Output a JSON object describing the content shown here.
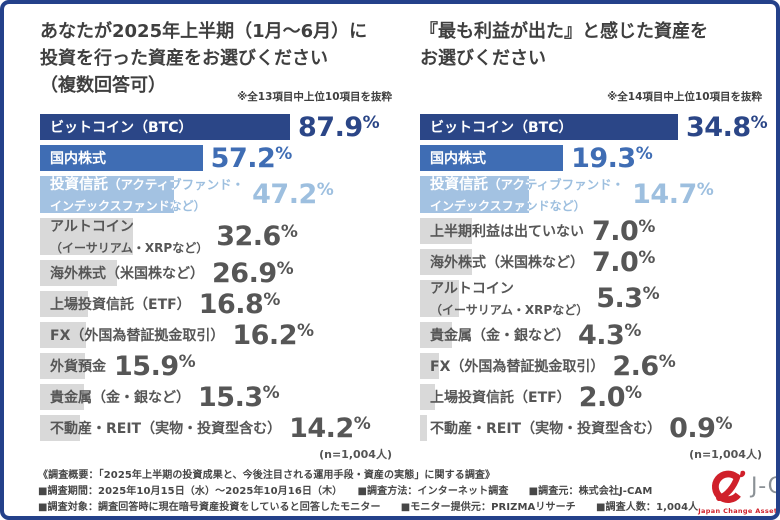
{
  "colors": {
    "frame": "#24418a",
    "navy": "#2b4687",
    "blue": "#3f6db4",
    "lightblue_bar": "#a3c2e2",
    "lightblue_text": "#9dbfdf",
    "gray_bar": "#d9d9d9",
    "text_gray": "#565656",
    "title_gray": "#3f3f3f",
    "logo_red": "#d0202a",
    "logo_gray": "#8b9196"
  },
  "chart_data": [
    {
      "type": "bar",
      "title": "あなたが2025年上半期（1月～6月）に投資を行った資産をお選びください（複数回答可）",
      "title_lines": [
        "あなたが2025年上半期（1月～6月）に",
        "投資を行った資産をお選びください",
        "（複数回答可）"
      ],
      "note": "※全13項目中上位10項目を抜粋",
      "n_label": "(n=1,004人)",
      "unit": "%",
      "scale_max": 87.9,
      "categories": [
        "ビットコイン（BTC）",
        "国内株式",
        "投資信託（アクティブファンド・インデックスファンドなど）",
        "アルトコイン（イーサリアム・XRPなど）",
        "海外株式（米国株など）",
        "上場投資信託（ETF）",
        "FX（外国為替証拠金取引）",
        "外貨預金",
        "貴金属（金・銀など）",
        "不動産・REIT（実物・投資型含む）"
      ],
      "values": [
        87.9,
        57.2,
        47.2,
        32.6,
        26.9,
        16.8,
        16.2,
        15.9,
        15.3,
        14.2
      ],
      "rows": [
        {
          "style": "navy",
          "value": "87.9",
          "pct": 87.9,
          "lines": [
            {
              "t": "ビットコイン（BTC）"
            }
          ]
        },
        {
          "style": "blue",
          "value": "57.2",
          "pct": 57.2,
          "lines": [
            {
              "t": "国内株式"
            }
          ]
        },
        {
          "style": "lightblue",
          "value": "47.2",
          "pct": 47.2,
          "lines": [
            {
              "s": "投資信託",
              "t": "（アクティブファンド・"
            },
            {
              "t": "インデックスファンドなど）",
              "sub": true
            }
          ]
        },
        {
          "style": "gray",
          "value": "32.6",
          "pct": 32.6,
          "lines": [
            {
              "t": "アルトコイン"
            },
            {
              "t": "（イーサリアム・XRPなど）",
              "sub": true
            }
          ]
        },
        {
          "style": "gray",
          "value": "26.9",
          "pct": 26.9,
          "lines": [
            {
              "t": "海外株式（米国株など）"
            }
          ]
        },
        {
          "style": "gray",
          "value": "16.8",
          "pct": 16.8,
          "lines": [
            {
              "t": "上場投資信託（ETF）"
            }
          ]
        },
        {
          "style": "gray",
          "value": "16.2",
          "pct": 16.2,
          "lines": [
            {
              "t": "FX（外国為替証拠金取引）"
            }
          ]
        },
        {
          "style": "gray",
          "value": "15.9",
          "pct": 15.9,
          "lines": [
            {
              "t": "外貨預金"
            }
          ]
        },
        {
          "style": "gray",
          "value": "15.3",
          "pct": 15.3,
          "lines": [
            {
              "t": "貴金属（金・銀など）"
            }
          ]
        },
        {
          "style": "gray",
          "value": "14.2",
          "pct": 14.2,
          "lines": [
            {
              "t": "不動産・REIT（実物・投資型含む）"
            }
          ]
        }
      ]
    },
    {
      "type": "bar",
      "title": "『最も利益が出た』と感じた資産をお選びください",
      "title_lines": [
        "『最も利益が出た』と感じた資産を",
        "お選びください"
      ],
      "note": "※全14項目中上位10項目を抜粋",
      "n_label": "(n=1,004人)",
      "unit": "%",
      "scale_max": 34.8,
      "categories": [
        "ビットコイン（BTC）",
        "国内株式",
        "投資信託（アクティブファンド・インデックスファンドなど）",
        "上半期利益は出ていない",
        "海外株式（米国株など）",
        "アルトコイン（イーサリアム・XRPなど）",
        "貴金属（金・銀など）",
        "FX（外国為替証拠金取引）",
        "上場投資信託（ETF）",
        "不動産・REIT（実物・投資型含む）"
      ],
      "values": [
        34.8,
        19.3,
        14.7,
        7.0,
        7.0,
        5.3,
        4.3,
        2.6,
        2.0,
        0.9
      ],
      "rows": [
        {
          "style": "navy",
          "value": "34.8",
          "pct": 34.8,
          "lines": [
            {
              "t": "ビットコイン（BTC）"
            }
          ]
        },
        {
          "style": "blue",
          "value": "19.3",
          "pct": 19.3,
          "lines": [
            {
              "t": "国内株式"
            }
          ]
        },
        {
          "style": "lightblue",
          "value": "14.7",
          "pct": 14.7,
          "lines": [
            {
              "s": "投資信託",
              "t": "（アクティブファンド・"
            },
            {
              "t": "インデックスファンドなど）",
              "sub": true
            }
          ]
        },
        {
          "style": "gray",
          "value": "7.0",
          "pct": 7.0,
          "lines": [
            {
              "t": "上半期利益は出ていない"
            }
          ]
        },
        {
          "style": "gray",
          "value": "7.0",
          "pct": 7.0,
          "lines": [
            {
              "t": "海外株式（米国株など）"
            }
          ]
        },
        {
          "style": "gray",
          "value": "5.3",
          "pct": 5.3,
          "lines": [
            {
              "t": "アルトコイン"
            },
            {
              "t": "（イーサリアム・XRPなど）",
              "sub": true
            }
          ]
        },
        {
          "style": "gray",
          "value": "4.3",
          "pct": 4.3,
          "lines": [
            {
              "t": "貴金属（金・銀など）"
            }
          ]
        },
        {
          "style": "gray",
          "value": "2.6",
          "pct": 2.6,
          "lines": [
            {
              "t": "FX（外国為替証拠金取引）"
            }
          ]
        },
        {
          "style": "gray",
          "value": "2.0",
          "pct": 2.0,
          "lines": [
            {
              "t": "上場投資信託（ETF）"
            }
          ]
        },
        {
          "style": "gray",
          "value": "0.9",
          "pct": 0.9,
          "lines": [
            {
              "t": "不動産・REIT（実物・投資型含む）"
            }
          ]
        }
      ]
    }
  ],
  "footer": {
    "line1": "《調査概要：「2025年上半期の投資成果と、今後注目される運用手段・資産の実態」に関する調査》",
    "line2": "■調査期間：2025年10月15日（水）～2025年10月16日（木）　　■調査方法：インターネット調査　　■調査元：株式会社J-CAM",
    "line3": "■調査対象：調査回答時に現在暗号資産投資をしていると回答したモニター　　■モニター提供元：PRIZMAリサーチ　　■調査人数：1,004人"
  },
  "logo": {
    "wordmark": "J-CAM",
    "tagline": "Japan Change Asset Management"
  }
}
